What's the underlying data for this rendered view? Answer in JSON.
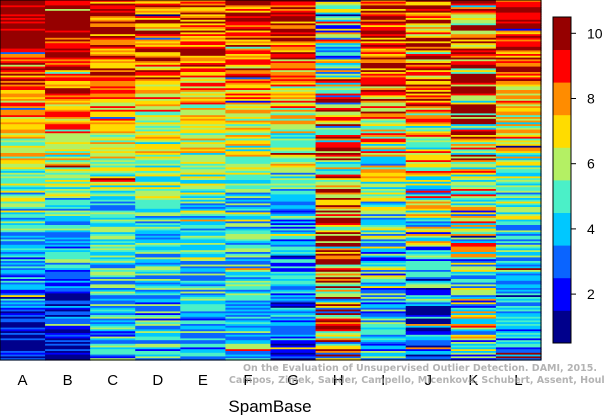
{
  "chart_data": {
    "type": "heatmap",
    "title": "",
    "xlabel": "SpamBase",
    "columns": [
      "A",
      "B",
      "C",
      "D",
      "E",
      "F",
      "G",
      "H",
      "I",
      "J",
      "K",
      "L"
    ],
    "rows": 200,
    "colorbar": {
      "range": [
        0.5,
        10.5
      ],
      "ticks": [
        2,
        4,
        6,
        8,
        10
      ],
      "colors": [
        "#00008C",
        "#0000FF",
        "#0A64FF",
        "#00C8FF",
        "#4BF0C8",
        "#B4F064",
        "#FFDC00",
        "#FF8C00",
        "#FF0000",
        "#960000"
      ]
    },
    "column_profiles": [
      {
        "name": "A",
        "top": 10,
        "mid": 5,
        "low": 1.5,
        "spread": 1.8
      },
      {
        "name": "B",
        "top": 10,
        "mid": 5,
        "low": 1.5,
        "spread": 1.8
      },
      {
        "name": "C",
        "top": 9,
        "mid": 5,
        "low": 4,
        "spread": 1.8
      },
      {
        "name": "D",
        "top": 8.5,
        "mid": 5,
        "low": 4,
        "spread": 2
      },
      {
        "name": "E",
        "top": 8.5,
        "mid": 5,
        "low": 4,
        "spread": 1.8
      },
      {
        "name": "F",
        "top": 8.5,
        "mid": 5,
        "low": 4,
        "spread": 1.8
      },
      {
        "name": "G",
        "top": 8.5,
        "mid": 4,
        "low": 2.5,
        "spread": 2
      },
      {
        "name": "H",
        "top": 5,
        "mid": 9,
        "low": 6,
        "spread": 4
      },
      {
        "name": "I",
        "top": 9,
        "mid": 5,
        "low": 4,
        "spread": 2.5
      },
      {
        "name": "J",
        "top": 9,
        "mid": 6,
        "low": 1.5,
        "spread": 2.8
      },
      {
        "name": "K",
        "top": 9,
        "mid": 6,
        "low": 5,
        "spread": 3.5
      },
      {
        "name": "L",
        "top": 9,
        "mid": 5,
        "low": 3.5,
        "spread": 1.8
      }
    ]
  },
  "watermark": {
    "line1": "On the Evaluation of Unsupervised Outlier Detection. DAMI, 2015.",
    "line2": "Campos, Zimek, Sander, Campello, Micenková, Schubert, Assent, Houle"
  }
}
